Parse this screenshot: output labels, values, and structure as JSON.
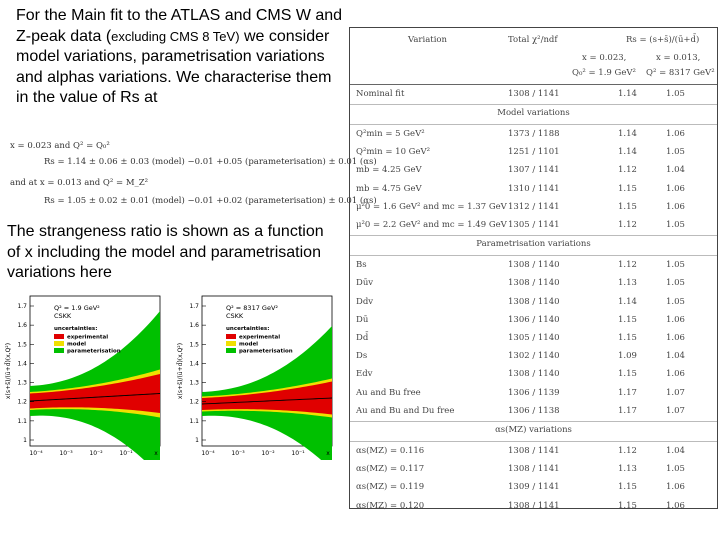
{
  "intro": {
    "text_a": "For the Main fit to the ATLAS and CMS W and Z-peak data (",
    "text_small": "excluding CMS 8 TeV)",
    "text_b": " we consider model variations, parametrisation variations and alphas variations. We characterise them in the value of Rs at"
  },
  "equations": {
    "l1": "x = 0.023 and Q² = Q₀²",
    "l2": "Rs = 1.14 ± 0.06 ± 0.03 (model) −0.01 +0.05 (parameterisation) ± 0.01 (αs)",
    "l3": "and at x = 0.013 and Q² = M_Z²",
    "l4": "Rs = 1.05 ± 0.02 ± 0.01 (model) −0.01 +0.02 (parameterisation) ± 0.01 (αs)"
  },
  "strange_text": "The strangeness ratio is shown as a function of x including the model and parametrisation variations here",
  "plots": [
    {
      "q2": "Q² = 1.9 GeV²",
      "label": "CSKK",
      "ylabel": "x(s+s̄)/(ū+d̄)(x,Q²)",
      "legend_title": "uncertainties:",
      "legend": [
        {
          "name": "experimental",
          "color": "#e00000"
        },
        {
          "name": "model",
          "color": "#f0e000"
        },
        {
          "name": "parameterisation",
          "color": "#00c000"
        }
      ],
      "xticks": [
        "10⁻⁴",
        "10⁻³",
        "10⁻²",
        "10⁻¹",
        "x"
      ],
      "yticks": [
        "1.7",
        "1.6",
        "1.5",
        "1.4",
        "1.3",
        "1.2",
        "1.1",
        "1"
      ]
    },
    {
      "q2": "Q² = 8317 GeV²",
      "label": "CSKK",
      "ylabel": "x(s+s̄)/(ū+d̄)(x,Q²)",
      "legend_title": "uncertainties:",
      "legend": [
        {
          "name": "experimental",
          "color": "#e00000"
        },
        {
          "name": "model",
          "color": "#f0e000"
        },
        {
          "name": "parameterisation",
          "color": "#00c000"
        }
      ],
      "xticks": [
        "10⁻⁴",
        "10⁻³",
        "10⁻²",
        "10⁻¹",
        "x"
      ],
      "yticks": [
        "1.7",
        "1.6",
        "1.5",
        "1.4",
        "1.3",
        "1.2",
        "1.1",
        "1"
      ]
    }
  ],
  "table": {
    "header": {
      "col1": "Variation",
      "col2": "Total χ²/ndf",
      "col3": "Rs = (s+s̄)/(ū+d̄)",
      "sub1": "x = 0.023,",
      "sub2": "x = 0.013,",
      "sub3": "Q₀² = 1.9 GeV²",
      "sub4": "Q² = 8317 GeV²"
    },
    "nominal": {
      "name": "Nominal fit",
      "chi": "1308 / 1141",
      "r1": "1.14",
      "r2": "1.05"
    },
    "sections": [
      {
        "title": "Model variations",
        "rows": [
          {
            "name": "Q²min = 5 GeV²",
            "chi": "1373 / 1188",
            "r1": "1.14",
            "r2": "1.06"
          },
          {
            "name": "Q²min = 10 GeV²",
            "chi": "1251 / 1101",
            "r1": "1.14",
            "r2": "1.05"
          },
          {
            "name": "mb = 4.25 GeV",
            "chi": "1307 / 1141",
            "r1": "1.12",
            "r2": "1.04"
          },
          {
            "name": "mb = 4.75 GeV",
            "chi": "1310 / 1141",
            "r1": "1.15",
            "r2": "1.06"
          },
          {
            "name": "μ²0 = 1.6 GeV² and mc = 1.37 GeV",
            "chi": "1312 / 1141",
            "r1": "1.15",
            "r2": "1.06"
          },
          {
            "name": "μ²0 = 2.2 GeV² and mc = 1.49 GeV",
            "chi": "1305 / 1141",
            "r1": "1.12",
            "r2": "1.05"
          }
        ]
      },
      {
        "title": "Parametrisation variations",
        "rows": [
          {
            "name": "Bs",
            "chi": "1308 / 1140",
            "r1": "1.12",
            "r2": "1.05"
          },
          {
            "name": "Dūv",
            "chi": "1308 / 1140",
            "r1": "1.13",
            "r2": "1.05"
          },
          {
            "name": "Ddv",
            "chi": "1308 / 1140",
            "r1": "1.14",
            "r2": "1.05"
          },
          {
            "name": "Dū",
            "chi": "1306 / 1140",
            "r1": "1.15",
            "r2": "1.06"
          },
          {
            "name": "Dd̄",
            "chi": "1305 / 1140",
            "r1": "1.15",
            "r2": "1.06"
          },
          {
            "name": "Ds",
            "chi": "1302 / 1140",
            "r1": "1.09",
            "r2": "1.04"
          },
          {
            "name": "Edv",
            "chi": "1308 / 1140",
            "r1": "1.15",
            "r2": "1.06"
          },
          {
            "name": "Au and Bu free",
            "chi": "1306 / 1139",
            "r1": "1.17",
            "r2": "1.07"
          },
          {
            "name": "Au and Bu and Du free",
            "chi": "1306 / 1138",
            "r1": "1.17",
            "r2": "1.07"
          }
        ]
      },
      {
        "title": "αs(MZ) variations",
        "rows": [
          {
            "name": "αs(MZ) = 0.116",
            "chi": "1308 / 1141",
            "r1": "1.12",
            "r2": "1.04"
          },
          {
            "name": "αs(MZ) = 0.117",
            "chi": "1308 / 1141",
            "r1": "1.13",
            "r2": "1.05"
          },
          {
            "name": "αs(MZ) = 0.119",
            "chi": "1309 / 1141",
            "r1": "1.15",
            "r2": "1.06"
          },
          {
            "name": "αs(MZ) = 0.120",
            "chi": "1308 / 1141",
            "r1": "1.15",
            "r2": "1.06"
          }
        ]
      }
    ]
  }
}
